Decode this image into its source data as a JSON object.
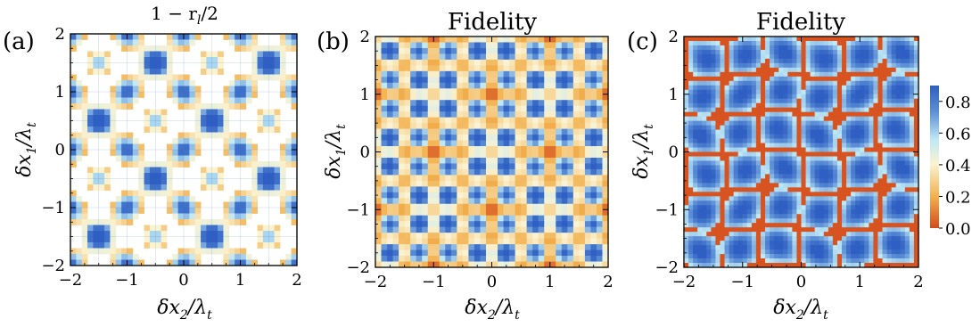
{
  "chart_data": [
    {
      "type": "heatmap",
      "panel_label": "(a)",
      "title": "1 − r",
      "title_sub": "l",
      "title_tail": "/2",
      "xlabel": "δx",
      "xlabel_sub": "2",
      "xlabel_tail": "/λ",
      "xlabel_tail_sub": "t",
      "ylabel": "δx",
      "ylabel_sub": "1",
      "ylabel_tail": "/λ",
      "ylabel_tail_sub": "t",
      "xlim": [
        -2,
        2
      ],
      "ylim": [
        -2,
        2
      ],
      "xticks": [
        "−2",
        "−1",
        "0",
        "1",
        "2"
      ],
      "yticks": [
        "−2",
        "−1",
        "0",
        "1",
        "2"
      ],
      "style": "contour"
    },
    {
      "type": "heatmap",
      "panel_label": "(b)",
      "title": "Fidelity",
      "xlabel": "δx",
      "xlabel_sub": "2",
      "xlabel_tail": "/λ",
      "xlabel_tail_sub": "t",
      "ylabel": "δx",
      "ylabel_sub": "1",
      "ylabel_tail": "/λ",
      "ylabel_tail_sub": "t",
      "xlim": [
        -2,
        2
      ],
      "ylim": [
        -2,
        2
      ],
      "xticks": [
        "−2",
        "−1",
        "0",
        "1",
        "2"
      ],
      "yticks": [
        "−2",
        "−1",
        "0",
        "1",
        "2"
      ],
      "style": "smooth"
    },
    {
      "type": "heatmap",
      "panel_label": "(c)",
      "title": "Fidelity",
      "xlabel": "δx",
      "xlabel_sub": "2",
      "xlabel_tail": "/λ",
      "xlabel_tail_sub": "t",
      "ylabel": "δx",
      "ylabel_sub": "1",
      "ylabel_tail": "/λ",
      "ylabel_tail_sub": "t",
      "xlim": [
        -2,
        2
      ],
      "ylim": [
        -2,
        2
      ],
      "xticks": [
        "−2",
        "−1",
        "0",
        "1",
        "2"
      ],
      "yticks": [
        "−2",
        "−1",
        "0",
        "1",
        "2"
      ],
      "style": "fine",
      "colorbar": {
        "range": [
          0.0,
          0.9
        ],
        "ticks": [
          "0.0",
          "0.2",
          "0.4",
          "0.6",
          "0.8"
        ],
        "tick_values": [
          0.0,
          0.2,
          0.4,
          0.6,
          0.8
        ],
        "colors": [
          "#d44a1c",
          "#f2b04d",
          "#fbf3d2",
          "#bfe8f5",
          "#5b8ed6",
          "#2f5fc2"
        ]
      }
    }
  ]
}
